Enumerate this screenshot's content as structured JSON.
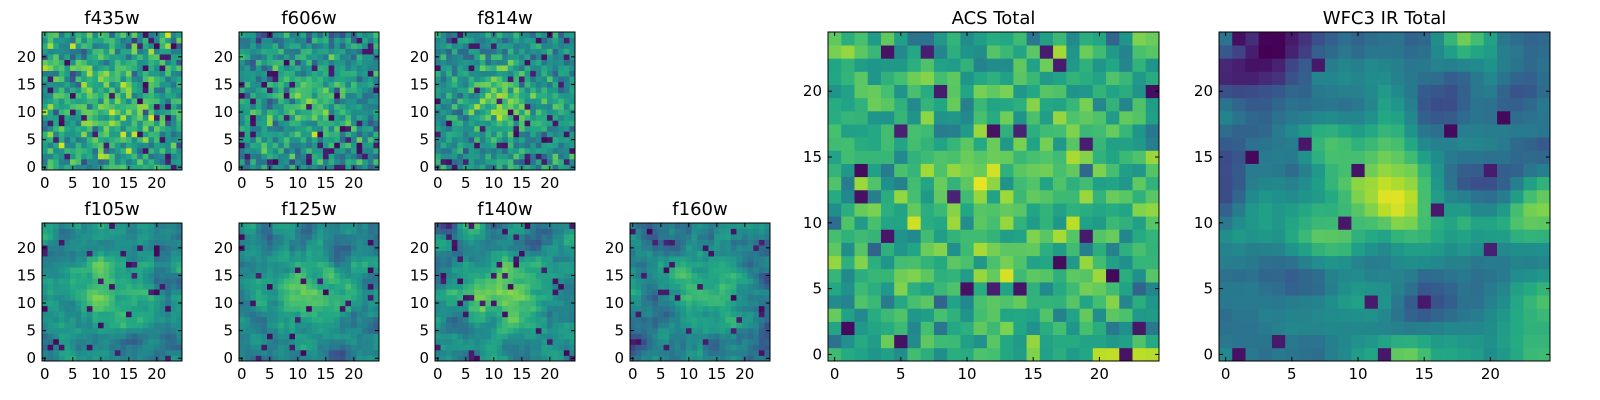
{
  "chart_data": [
    {
      "type": "heatmap",
      "title": "f435w",
      "size": 25,
      "colormap": "viridis",
      "xticks": [
        0,
        5,
        10,
        15,
        20
      ],
      "yticks": [
        0,
        5,
        10,
        15,
        20
      ],
      "xlim": [
        -0.5,
        24.5
      ],
      "ylim": [
        -0.5,
        24.5
      ],
      "seed": 11,
      "spread": 1.5,
      "blob": 0.45,
      "smooth": 0,
      "gain": 0.5,
      "bias": 0.62,
      "darkFrac": 0.05
    },
    {
      "type": "heatmap",
      "title": "f606w",
      "size": 25,
      "colormap": "viridis",
      "xticks": [
        0,
        5,
        10,
        15,
        20
      ],
      "yticks": [
        0,
        5,
        10,
        15,
        20
      ],
      "xlim": [
        -0.5,
        24.5
      ],
      "ylim": [
        -0.5,
        24.5
      ],
      "seed": 23,
      "spread": 1.2,
      "blob": 0.55,
      "smooth": 0,
      "gain": 0.52,
      "bias": 0.56,
      "darkFrac": 0.08
    },
    {
      "type": "heatmap",
      "title": "f814w",
      "size": 25,
      "colormap": "viridis",
      "xticks": [
        0,
        5,
        10,
        15,
        20
      ],
      "yticks": [
        0,
        5,
        10,
        15,
        20
      ],
      "xlim": [
        -0.5,
        24.5
      ],
      "ylim": [
        -0.5,
        24.5
      ],
      "seed": 37,
      "spread": 1.1,
      "blob": 0.65,
      "smooth": 0,
      "gain": 0.52,
      "bias": 0.58,
      "darkFrac": 0.07
    },
    {
      "type": "heatmap",
      "title": "f105w",
      "size": 25,
      "colormap": "viridis",
      "xticks": [
        0,
        5,
        10,
        15,
        20
      ],
      "yticks": [
        0,
        5,
        10,
        15,
        20
      ],
      "xlim": [
        -0.5,
        24.5
      ],
      "ylim": [
        -0.5,
        24.5
      ],
      "seed": 41,
      "spread": 1.3,
      "blob": 0.75,
      "smooth": 1,
      "gain": 0.55,
      "bias": 0.56,
      "darkFrac": 0.04
    },
    {
      "type": "heatmap",
      "title": "f125w",
      "size": 25,
      "colormap": "viridis",
      "xticks": [
        0,
        5,
        10,
        15,
        20
      ],
      "yticks": [
        0,
        5,
        10,
        15,
        20
      ],
      "xlim": [
        -0.5,
        24.5
      ],
      "ylim": [
        -0.5,
        24.5
      ],
      "seed": 53,
      "spread": 1.3,
      "blob": 0.75,
      "smooth": 1,
      "gain": 0.55,
      "bias": 0.55,
      "darkFrac": 0.05
    },
    {
      "type": "heatmap",
      "title": "f140w",
      "size": 25,
      "colormap": "viridis",
      "xticks": [
        0,
        5,
        10,
        15,
        20
      ],
      "yticks": [
        0,
        5,
        10,
        15,
        20
      ],
      "xlim": [
        -0.5,
        24.5
      ],
      "ylim": [
        -0.5,
        24.5
      ],
      "seed": 67,
      "spread": 1.3,
      "blob": 0.8,
      "smooth": 1,
      "gain": 0.55,
      "bias": 0.55,
      "darkFrac": 0.05
    },
    {
      "type": "heatmap",
      "title": "f160w",
      "size": 25,
      "colormap": "viridis",
      "xticks": [
        0,
        5,
        10,
        15,
        20
      ],
      "yticks": [
        0,
        5,
        10,
        15,
        20
      ],
      "xlim": [
        -0.5,
        24.5
      ],
      "ylim": [
        -0.5,
        24.5
      ],
      "seed": 79,
      "spread": 1.3,
      "blob": 0.85,
      "smooth": 1,
      "gain": 0.55,
      "bias": 0.52,
      "darkFrac": 0.05
    },
    {
      "type": "heatmap",
      "title": "ACS Total",
      "size": 25,
      "colormap": "viridis",
      "xticks": [
        0,
        5,
        10,
        15,
        20
      ],
      "yticks": [
        0,
        5,
        10,
        15,
        20
      ],
      "xlim": [
        -0.5,
        24.5
      ],
      "ylim": [
        -0.5,
        24.5
      ],
      "seed": 83,
      "spread": 1.4,
      "blob": 0.35,
      "smooth": 0,
      "gain": 0.45,
      "bias": 0.66,
      "darkFrac": 0.035
    },
    {
      "type": "heatmap",
      "title": "WFC3 IR Total",
      "size": 25,
      "colormap": "viridis",
      "xticks": [
        0,
        5,
        10,
        15,
        20
      ],
      "yticks": [
        0,
        5,
        10,
        15,
        20
      ],
      "xlim": [
        -0.5,
        24.5
      ],
      "ylim": [
        -0.5,
        24.5
      ],
      "seed": 97,
      "spread": 1.8,
      "blob": 1.1,
      "smooth": 2,
      "gain": 0.6,
      "bias": 0.5,
      "darkFrac": 0.03
    }
  ]
}
